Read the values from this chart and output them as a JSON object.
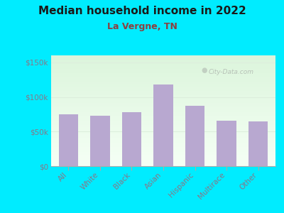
{
  "title": "Median household income in 2022",
  "subtitle": "La Vergne, TN",
  "categories": [
    "All",
    "White",
    "Black",
    "Asian",
    "Hispanic",
    "Multirace",
    "Other"
  ],
  "values": [
    75000,
    73000,
    78000,
    118000,
    87000,
    66000,
    65000
  ],
  "bar_color": "#b8a8d0",
  "background_outer": "#00ecff",
  "title_color": "#1a1a1a",
  "subtitle_color": "#8b4040",
  "tick_color": "#887788",
  "yticks": [
    0,
    50000,
    100000,
    150000
  ],
  "ytick_labels": [
    "$0",
    "$50k",
    "$100k",
    "$150k"
  ],
  "ylim": [
    0,
    160000
  ],
  "watermark": "City-Data.com",
  "grid_color": "#ddeedd"
}
